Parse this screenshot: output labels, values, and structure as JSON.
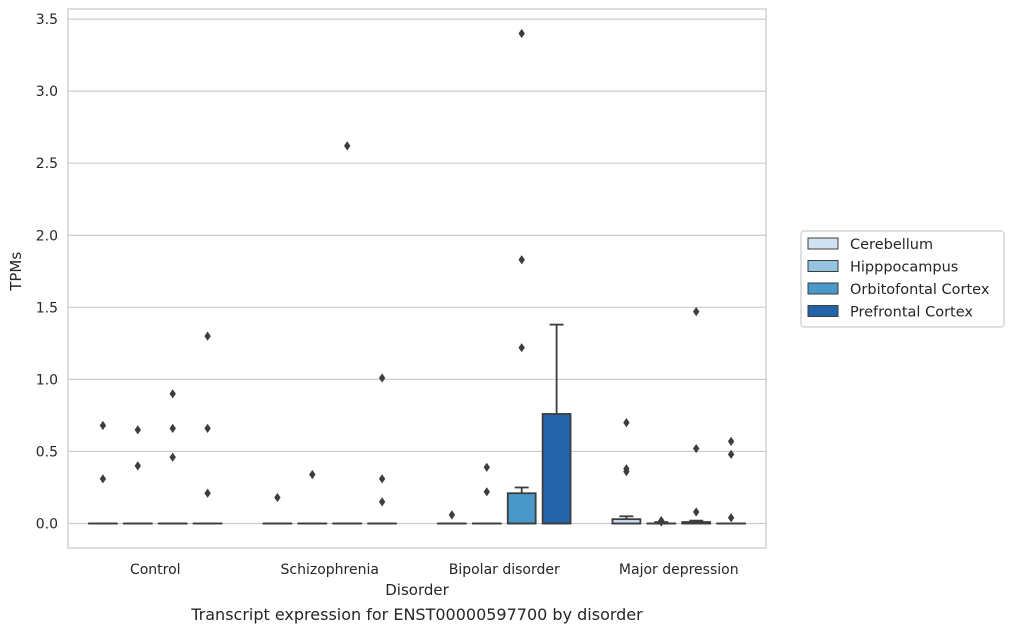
{
  "caption": "Transcript expression for ENST00000597700 by disorder",
  "chart_data": {
    "type": "box",
    "xlabel": "Disorder",
    "ylabel": "TPMs",
    "ylim": [
      -0.17,
      3.57
    ],
    "yticks": [
      "0.0",
      "0.5",
      "1.0",
      "1.5",
      "2.0",
      "2.5",
      "3.0",
      "3.5"
    ],
    "ytick_values": [
      0,
      0.5,
      1.0,
      1.5,
      2.0,
      2.5,
      3.0,
      3.5
    ],
    "grid": "horizontal",
    "legend_position": "right",
    "categories": [
      "Control",
      "Schizophrenia",
      "Bipolar disorder",
      "Major depression"
    ],
    "series": [
      {
        "name": "Cerebellum",
        "color": "#d0e1f2",
        "boxes": [
          {
            "q1": 0,
            "median": 0,
            "q3": 0,
            "whisker_low": 0,
            "whisker_high": 0,
            "outliers": [
              0.31,
              0.68
            ]
          },
          {
            "q1": 0,
            "median": 0,
            "q3": 0,
            "whisker_low": 0,
            "whisker_high": 0,
            "outliers": [
              0.18
            ]
          },
          {
            "q1": 0,
            "median": 0,
            "q3": 0,
            "whisker_low": 0,
            "whisker_high": 0,
            "outliers": [
              0.06
            ]
          },
          {
            "q1": 0,
            "median": 0,
            "q3": 0.03,
            "whisker_low": 0,
            "whisker_high": 0.05,
            "outliers": [
              0.36,
              0.38,
              0.7
            ]
          }
        ]
      },
      {
        "name": "Hipppocampus",
        "color": "#94c4df",
        "boxes": [
          {
            "q1": 0,
            "median": 0,
            "q3": 0,
            "whisker_low": 0,
            "whisker_high": 0,
            "outliers": [
              0.4,
              0.65
            ]
          },
          {
            "q1": 0,
            "median": 0,
            "q3": 0,
            "whisker_low": 0,
            "whisker_high": 0,
            "outliers": [
              0.34
            ]
          },
          {
            "q1": 0,
            "median": 0,
            "q3": 0,
            "whisker_low": 0,
            "whisker_high": 0,
            "outliers": [
              0.22,
              0.39
            ]
          },
          {
            "q1": 0,
            "median": 0,
            "q3": 0,
            "whisker_low": 0,
            "whisker_high": 0.01,
            "outliers": [
              0.01,
              0.02
            ]
          }
        ]
      },
      {
        "name": "Orbitofontal Cortex",
        "color": "#4a98c9",
        "boxes": [
          {
            "q1": 0,
            "median": 0,
            "q3": 0,
            "whisker_low": 0,
            "whisker_high": 0,
            "outliers": [
              0.46,
              0.66,
              0.9
            ]
          },
          {
            "q1": 0,
            "median": 0,
            "q3": 0,
            "whisker_low": 0,
            "whisker_high": 0,
            "outliers": [
              2.62
            ]
          },
          {
            "q1": 0,
            "median": 0,
            "q3": 0.21,
            "whisker_low": 0,
            "whisker_high": 0.25,
            "outliers": [
              1.22,
              1.83,
              3.4
            ]
          },
          {
            "q1": 0,
            "median": 0,
            "q3": 0.01,
            "whisker_low": 0,
            "whisker_high": 0.02,
            "outliers": [
              0.08,
              0.52,
              1.47
            ]
          }
        ]
      },
      {
        "name": "Prefrontal Cortex",
        "color": "#2264a7",
        "boxes": [
          {
            "q1": 0,
            "median": 0,
            "q3": 0,
            "whisker_low": 0,
            "whisker_high": 0,
            "outliers": [
              0.21,
              0.66,
              1.3
            ]
          },
          {
            "q1": 0,
            "median": 0,
            "q3": 0,
            "whisker_low": 0,
            "whisker_high": 0,
            "outliers": [
              0.15,
              0.31,
              1.01
            ]
          },
          {
            "q1": 0,
            "median": 0,
            "q3": 0.76,
            "whisker_low": 0,
            "whisker_high": 1.38,
            "outliers": []
          },
          {
            "q1": 0,
            "median": 0,
            "q3": 0,
            "whisker_low": 0,
            "whisker_high": 0,
            "outliers": [
              0.04,
              0.48,
              0.57
            ]
          }
        ]
      }
    ]
  }
}
